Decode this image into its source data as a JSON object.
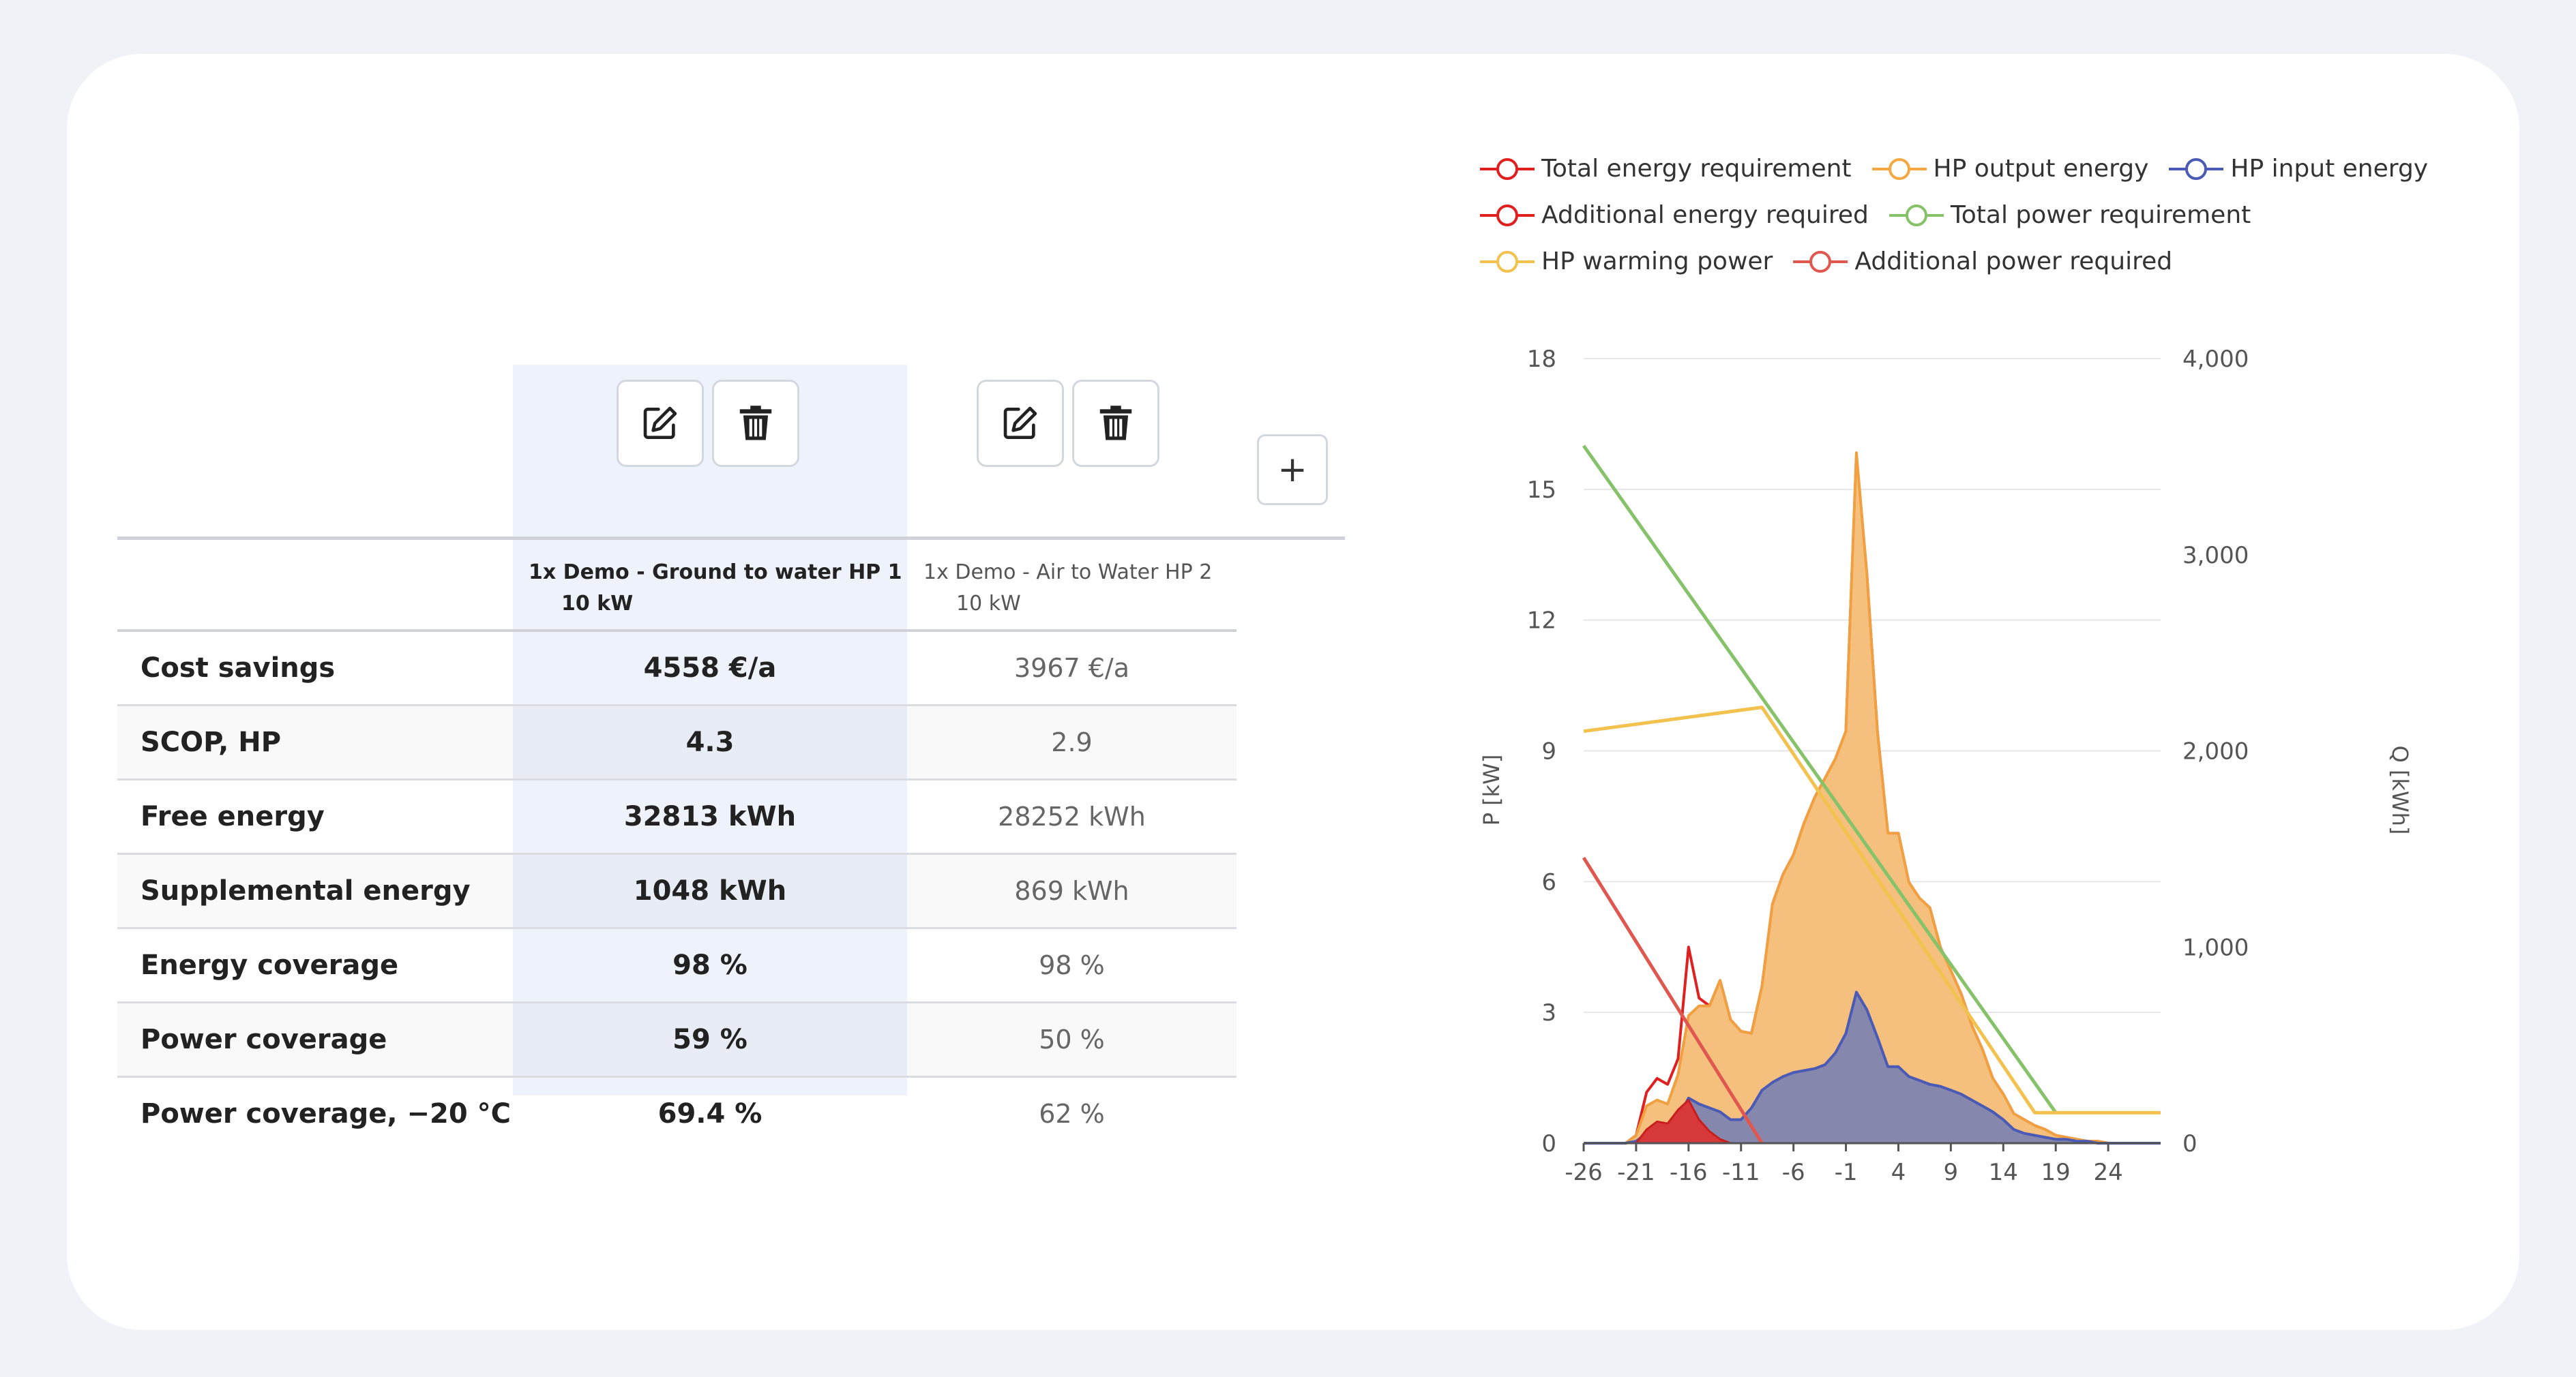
{
  "comparison": {
    "columns": [
      {
        "name_line1": "1x Demo - Ground to water HP 1",
        "name_line2": "10 kW"
      },
      {
        "name_line1": "1x Demo - Air to Water HP 2",
        "name_line2": "10 kW"
      }
    ],
    "rows": [
      {
        "label": "Cost savings",
        "v1": "4558 €/a",
        "v2": "3967 €/a"
      },
      {
        "label": "SCOP, HP",
        "v1": "4.3",
        "v2": "2.9"
      },
      {
        "label": "Free energy",
        "v1": "32813 kWh",
        "v2": "28252 kWh"
      },
      {
        "label": "Supplemental energy",
        "v1": "1048 kWh",
        "v2": "869 kWh"
      },
      {
        "label": "Energy coverage",
        "v1": "98 %",
        "v2": "98 %"
      },
      {
        "label": "Power coverage",
        "v1": "59 %",
        "v2": "50 %"
      },
      {
        "label": "Power coverage, −20 °C",
        "v1": "69.4 %",
        "v2": "62 %"
      }
    ],
    "icons": {
      "edit": "edit-icon",
      "delete": "trash-icon",
      "add": "plus-icon"
    },
    "add_label": "+"
  },
  "chart_data": {
    "type": "area",
    "legend": [
      {
        "name": "Total energy requirement",
        "color": "#e0201f"
      },
      {
        "name": "HP output energy",
        "color": "#f5a742"
      },
      {
        "name": "HP input energy",
        "color": "#4a5ab5"
      },
      {
        "name": "Additional energy required",
        "color": "#e0201f"
      },
      {
        "name": "Total power requirement",
        "color": "#86c26a"
      },
      {
        "name": "HP warming power",
        "color": "#f2c14e"
      },
      {
        "name": "Additional power required",
        "color": "#e0574f"
      }
    ],
    "legend_placement": "top",
    "x_ticks": [
      "-26",
      "-21",
      "-16",
      "-11",
      "-6",
      "-1",
      "4",
      "9",
      "14",
      "19",
      "24"
    ],
    "x_range": [
      -26,
      29
    ],
    "y_left_label": "P [kW]",
    "y_left_ticks": [
      "0",
      "3",
      "6",
      "9",
      "12",
      "15",
      "18"
    ],
    "y_left_range": [
      0,
      18
    ],
    "y_right_label": "Q [kWh]",
    "y_right_ticks": [
      "0",
      "1,000",
      "2,000",
      "3,000",
      "4,000"
    ],
    "y_right_range": [
      0,
      4000
    ],
    "grid": true,
    "x": [
      -26,
      -25,
      -24,
      -23,
      -22,
      -21,
      -20,
      -19,
      -18,
      -17,
      -16,
      -15,
      -14,
      -13,
      -12,
      -11,
      -10,
      -9,
      -8,
      -7,
      -6,
      -5,
      -4,
      -3,
      -2,
      -1,
      0,
      1,
      2,
      3,
      4,
      5,
      6,
      7,
      8,
      9,
      10,
      11,
      12,
      13,
      14,
      15,
      16,
      17,
      18,
      19,
      20,
      21,
      22,
      23,
      24,
      25,
      26,
      27,
      28,
      29
    ],
    "energy_series": [
      {
        "name": "Total energy requirement",
        "values": [
          0,
          0,
          0,
          0,
          0,
          40,
          260,
          330,
          300,
          430,
          1000,
          740,
          700,
          830,
          630,
          570,
          560,
          800,
          1220,
          1370,
          1470,
          1630,
          1760,
          1860,
          1960,
          2100,
          3500,
          2900,
          2100,
          1580,
          1580,
          1330,
          1250,
          1200,
          1000,
          880,
          760,
          600,
          480,
          330,
          250,
          150,
          120,
          90,
          70,
          40,
          30,
          20,
          10,
          10,
          0,
          0,
          0,
          0,
          0,
          0
        ]
      },
      {
        "name": "HP output energy",
        "values": [
          0,
          0,
          0,
          0,
          0,
          40,
          190,
          220,
          200,
          350,
          650,
          700,
          700,
          830,
          630,
          570,
          560,
          800,
          1220,
          1370,
          1470,
          1630,
          1760,
          1860,
          1960,
          2100,
          3520,
          2900,
          2100,
          1580,
          1580,
          1330,
          1250,
          1200,
          1000,
          880,
          760,
          600,
          480,
          330,
          250,
          150,
          120,
          90,
          70,
          40,
          30,
          20,
          10,
          10,
          0,
          0,
          0,
          0,
          0,
          0
        ]
      },
      {
        "name": "HP input energy",
        "values": [
          0,
          0,
          0,
          0,
          0,
          10,
          50,
          70,
          80,
          130,
          230,
          200,
          180,
          160,
          120,
          120,
          180,
          270,
          310,
          340,
          360,
          370,
          380,
          400,
          460,
          560,
          770,
          680,
          540,
          390,
          390,
          340,
          320,
          300,
          290,
          270,
          250,
          220,
          190,
          160,
          120,
          70,
          50,
          40,
          30,
          20,
          20,
          10,
          10,
          0,
          0,
          0,
          0,
          0,
          0,
          0
        ]
      },
      {
        "name": "Additional energy required",
        "values": [
          0,
          0,
          0,
          0,
          0,
          0,
          70,
          110,
          100,
          170,
          220,
          120,
          60,
          20,
          0,
          0,
          0,
          0,
          0,
          0,
          0,
          0,
          0,
          0,
          0,
          0,
          0,
          0,
          0,
          0,
          0,
          0,
          0,
          0,
          0,
          0,
          0,
          0,
          0,
          0,
          0,
          0,
          0,
          0,
          0,
          0,
          0,
          0,
          0,
          0,
          0,
          0,
          0,
          0,
          0,
          0
        ]
      }
    ],
    "power_series": [
      {
        "name": "Total power requirement",
        "x": [
          -26,
          19
        ],
        "values": [
          16.0,
          0.7
        ]
      },
      {
        "name": "HP warming power",
        "x": [
          -26,
          -9,
          17,
          29
        ],
        "values": [
          9.45,
          10.0,
          0.7,
          0.7
        ]
      },
      {
        "name": "Additional power required",
        "x": [
          -26,
          -9
        ],
        "values": [
          6.55,
          0.0
        ]
      }
    ]
  }
}
